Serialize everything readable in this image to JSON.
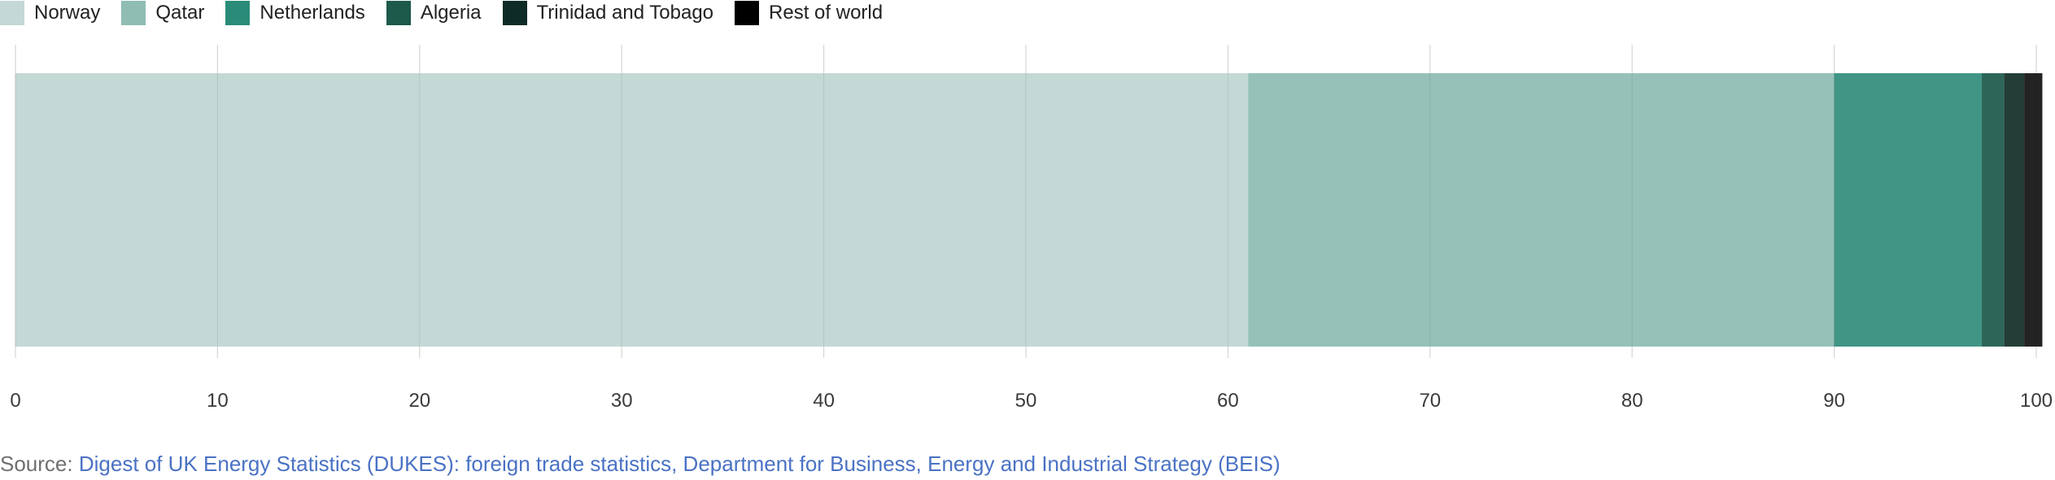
{
  "chart_data": {
    "type": "bar",
    "orientation": "horizontal",
    "stacked": true,
    "series": [
      {
        "name": "Norway",
        "value": 61.0,
        "color": "#c4d8d5"
      },
      {
        "name": "Qatar",
        "value": 29.0,
        "color": "#95c1b9"
      },
      {
        "name": "Netherlands",
        "value": 7.3,
        "color": "#409585"
      },
      {
        "name": "Algeria",
        "value": 1.1,
        "color": "#2d6659"
      },
      {
        "name": "Trinidad and Tobago",
        "value": 1.0,
        "color": "#233d37"
      },
      {
        "name": "Rest of world",
        "value": 0.9,
        "color": "#232323"
      }
    ],
    "legend_colors": [
      "#c4d8d5",
      "#8fbdb4",
      "#2a8c78",
      "#1d5a4b",
      "#0e2b26",
      "#000000"
    ],
    "xlim": [
      0,
      100
    ],
    "xticks": [
      "0",
      "10",
      "20",
      "30",
      "40",
      "50",
      "60",
      "70",
      "80",
      "90",
      "100"
    ],
    "grid": true,
    "legend_position": "top-left"
  },
  "source": {
    "prefix": "Source:",
    "link_text": "Digest of UK Energy Statistics (DUKES): foreign trade statistics, Department for Business, Energy and Industrial Strategy (BEIS)"
  }
}
